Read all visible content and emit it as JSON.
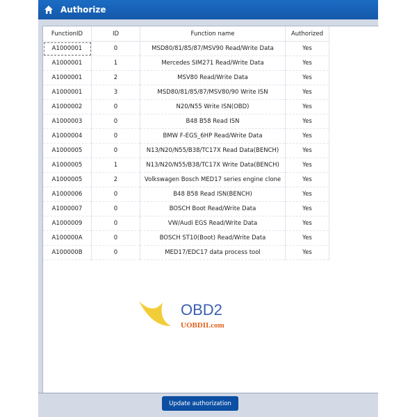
{
  "window": {
    "title": "Authorize",
    "icon": "home-icon"
  },
  "table": {
    "columns": [
      "FunctionID",
      "ID",
      "Function name",
      "Authorized"
    ],
    "rows": [
      [
        "A1000001",
        "0",
        "MSD80/81/85/87/MSV90 Read/Write Data",
        "Yes"
      ],
      [
        "A1000001",
        "1",
        "Mercedes SIM271 Read/Write Data",
        "Yes"
      ],
      [
        "A1000001",
        "2",
        "MSV80 Read/Write Data",
        "Yes"
      ],
      [
        "A1000001",
        "3",
        "MSD80/81/85/87/MSV80/90 Write ISN",
        "Yes"
      ],
      [
        "A1000002",
        "0",
        "N20/N55 Write ISN(OBD)",
        "Yes"
      ],
      [
        "A1000003",
        "0",
        "B48 B58 Read ISN",
        "Yes"
      ],
      [
        "A1000004",
        "0",
        "BMW F-EGS_6HP Read/Write Data",
        "Yes"
      ],
      [
        "A1000005",
        "0",
        "N13/N20/N55/B38/TC17X Read Data(BENCH)",
        "Yes"
      ],
      [
        "A1000005",
        "1",
        "N13/N20/N55/B38/TC17X Write Data(BENCH)",
        "Yes"
      ],
      [
        "A1000005",
        "2",
        "Volkswagen Bosch MED17 series engine clone",
        "Yes"
      ],
      [
        "A1000006",
        "0",
        "B48 B58 Read ISN(BENCH)",
        "Yes"
      ],
      [
        "A1000007",
        "0",
        "BOSCH Boot Read/Write Data",
        "Yes"
      ],
      [
        "A1000009",
        "0",
        "VW/Audi EGS Read/Write Data",
        "Yes"
      ],
      [
        "A100000A",
        "0",
        "BOSCH ST10(Boot) Read/Write Data",
        "Yes"
      ],
      [
        "A100000B",
        "0",
        "MED17/EDC17 data process tool",
        "Yes"
      ]
    ]
  },
  "footer": {
    "update_label": "Update authorization"
  },
  "watermark": {
    "logo": "OBD2",
    "site": "UOBDII.com"
  },
  "colors": {
    "titlebar": "#1660b4",
    "button": "#0d4fa3",
    "background": "#d3dae6"
  }
}
